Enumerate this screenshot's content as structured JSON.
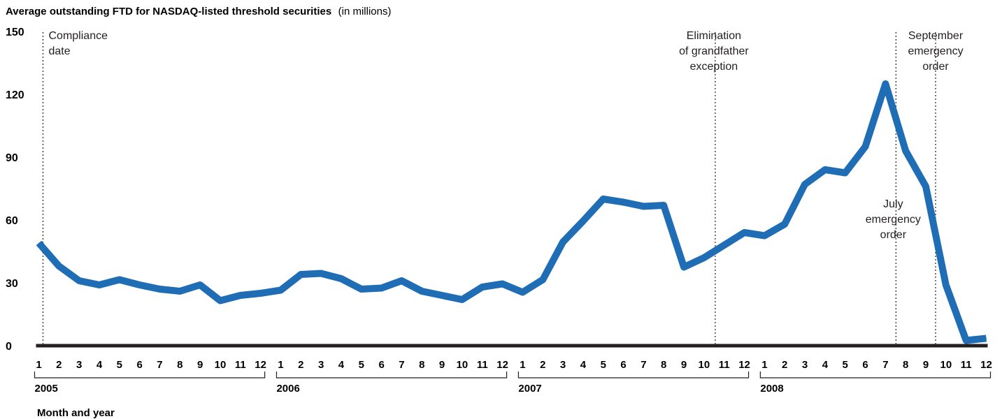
{
  "chart_data": {
    "type": "line",
    "title": "Average outstanding FTD for NASDAQ-listed threshold securities",
    "title_suffix": "(in millions)",
    "xlabel": "Month and year",
    "ylabel": "",
    "ylim": [
      0,
      150
    ],
    "yticks": [
      0,
      30,
      60,
      90,
      120,
      150
    ],
    "grid": false,
    "legend": "none",
    "years": [
      "2005",
      "2006",
      "2007",
      "2008"
    ],
    "month_labels": [
      "1",
      "2",
      "3",
      "4",
      "5",
      "6",
      "7",
      "8",
      "9",
      "10",
      "11",
      "12"
    ],
    "x": [
      "2005-01",
      "2005-02",
      "2005-03",
      "2005-04",
      "2005-05",
      "2005-06",
      "2005-07",
      "2005-08",
      "2005-09",
      "2005-10",
      "2005-11",
      "2005-12",
      "2006-01",
      "2006-02",
      "2006-03",
      "2006-04",
      "2006-05",
      "2006-06",
      "2006-07",
      "2006-08",
      "2006-09",
      "2006-10",
      "2006-11",
      "2006-12",
      "2007-01",
      "2007-02",
      "2007-03",
      "2007-04",
      "2007-05",
      "2007-06",
      "2007-07",
      "2007-08",
      "2007-09",
      "2007-10",
      "2007-11",
      "2007-12",
      "2008-01",
      "2008-02",
      "2008-03",
      "2008-04",
      "2008-05",
      "2008-06",
      "2008-07",
      "2008-08",
      "2008-09",
      "2008-10",
      "2008-11",
      "2008-12"
    ],
    "series": [
      {
        "color": "#1f6db5",
        "values": [
          49,
          38,
          31,
          29,
          31.5,
          29,
          27,
          26,
          29,
          21.5,
          24,
          25,
          26.5,
          34,
          34.5,
          32,
          27,
          27.5,
          31,
          26,
          24,
          22,
          28,
          29.5,
          25.5,
          31.5,
          49.5,
          59.5,
          70,
          68.5,
          66.5,
          67,
          37.5,
          42,
          48,
          54,
          52.5,
          58,
          77,
          84,
          82.5,
          95,
          125,
          93,
          76,
          29,
          2.5,
          3.5
        ]
      }
    ],
    "annotations": [
      {
        "x": "2005-01",
        "lines": [
          "Compliance",
          "date"
        ]
      },
      {
        "x": "2007-10",
        "lines": [
          "Elimination",
          "of grandfather",
          "exception"
        ]
      },
      {
        "x": "2008-07",
        "lines": [
          "July",
          "emergency",
          "order"
        ]
      },
      {
        "x": "2008-09",
        "lines": [
          "September",
          "emergency",
          "order"
        ]
      }
    ],
    "colors": {
      "line": "#1f6db5",
      "axis": "#231f20",
      "text": "#231f20"
    }
  }
}
